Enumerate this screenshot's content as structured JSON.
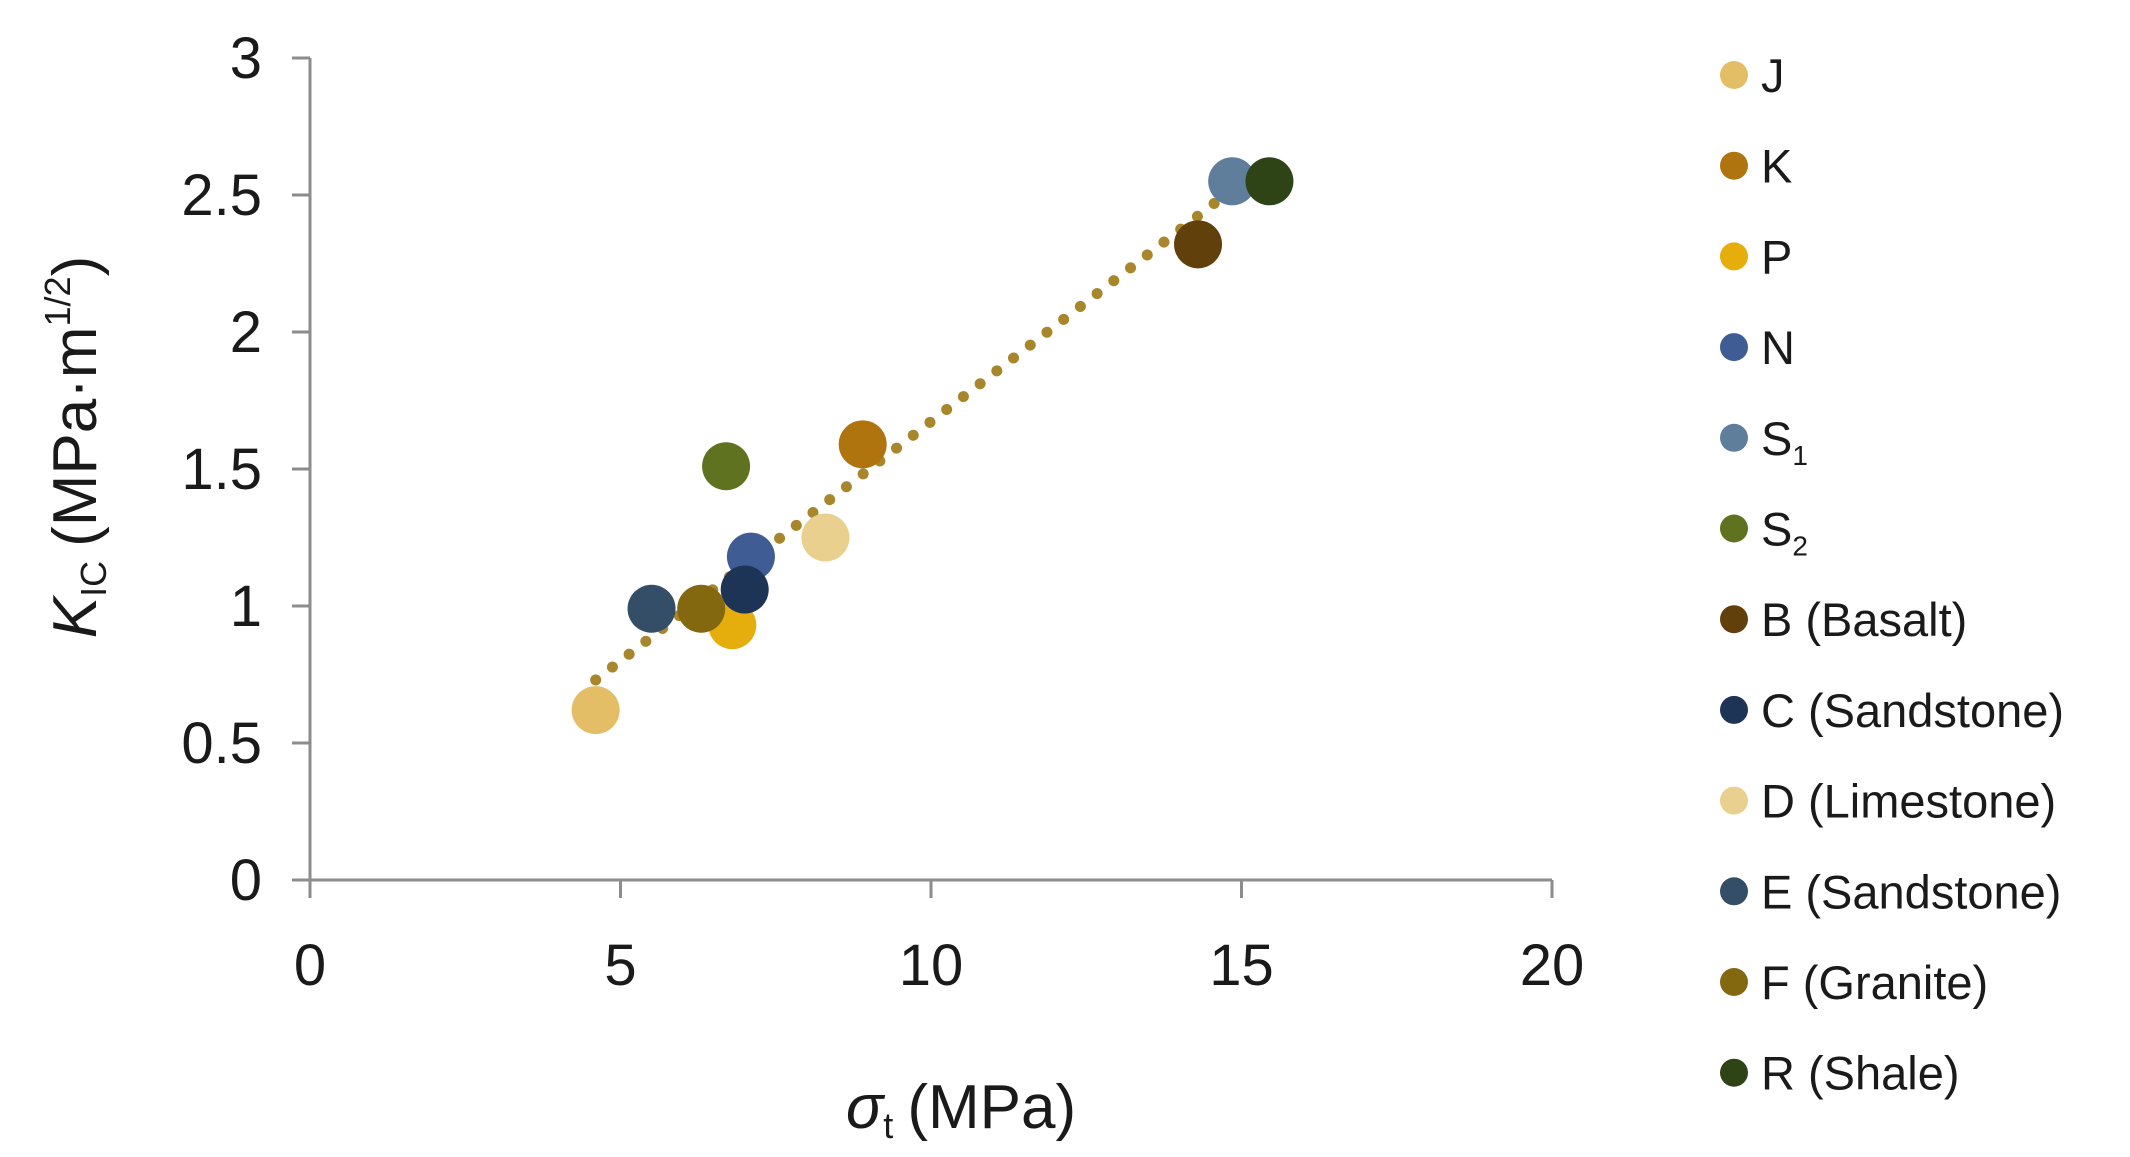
{
  "chart_data": {
    "type": "scatter",
    "title": "",
    "xlabel": {
      "symbol": "σ",
      "subscript": "t",
      "unit": "(MPa)"
    },
    "ylabel": {
      "symbol": "K",
      "subscript": "IC",
      "unit_prefix": "(MPa·m",
      "superscript": "1/2",
      "unit_suffix": ")"
    },
    "xlim": [
      0,
      20
    ],
    "ylim": [
      0,
      3
    ],
    "x_ticks": [
      0,
      5,
      10,
      15,
      20
    ],
    "y_ticks": [
      0,
      0.5,
      1,
      1.5,
      2,
      2.5,
      3
    ],
    "x_tick_labels": [
      "0",
      "5",
      "10",
      "15",
      "20"
    ],
    "y_tick_labels": [
      "0",
      "0.5",
      "1",
      "1.5",
      "2",
      "2.5",
      "3"
    ],
    "grid": false,
    "legend_placement": "right",
    "series": [
      {
        "name": "J",
        "subscript": "",
        "color": "#E3BE66",
        "x": 4.6,
        "y": 0.62
      },
      {
        "name": "K",
        "subscript": "",
        "color": "#B0740F",
        "x": 8.9,
        "y": 1.59
      },
      {
        "name": "P",
        "subscript": "",
        "color": "#E5AE0D",
        "x": 6.8,
        "y": 0.93
      },
      {
        "name": "N",
        "subscript": "",
        "color": "#3F5D94",
        "x": 7.1,
        "y": 1.18
      },
      {
        "name": "S",
        "subscript": "1",
        "color": "#5F7E9C",
        "x": 14.85,
        "y": 2.55
      },
      {
        "name": "S",
        "subscript": "2",
        "color": "#5E7220",
        "x": 6.7,
        "y": 1.51
      },
      {
        "name": "B (Basalt)",
        "subscript": "",
        "color": "#62400C",
        "x": 14.3,
        "y": 2.32
      },
      {
        "name": "C (Sandstone)",
        "subscript": "",
        "color": "#1E3456",
        "x": 7.0,
        "y": 1.06
      },
      {
        "name": "D (Limestone)",
        "subscript": "",
        "color": "#EAD08E",
        "x": 8.3,
        "y": 1.25
      },
      {
        "name": "E (Sandstone)",
        "subscript": "",
        "color": "#344E67",
        "x": 5.5,
        "y": 0.99
      },
      {
        "name": "F (Granite)",
        "subscript": "",
        "color": "#836810",
        "x": 6.3,
        "y": 0.99
      },
      {
        "name": "R (Shale)",
        "subscript": "",
        "color": "#2F4416",
        "x": 15.45,
        "y": 2.55
      }
    ],
    "trendline": {
      "type": "linear",
      "style": "dotted",
      "color": "#A8872C",
      "x_start": 4.6,
      "x_end": 14.85,
      "y_start": 0.73,
      "y_end": 2.52
    }
  }
}
